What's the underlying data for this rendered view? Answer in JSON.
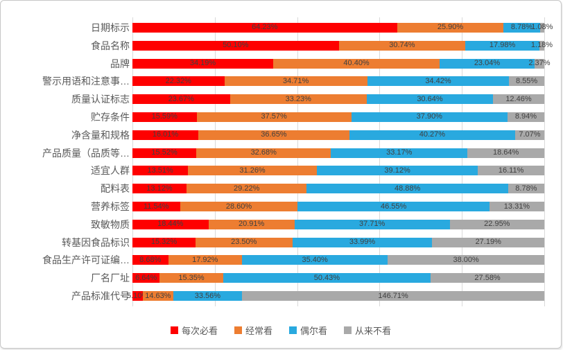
{
  "chart_data": {
    "type": "bar",
    "subtype": "horizontal-stacked-100",
    "title": "",
    "xlabel": "",
    "ylabel": "",
    "xlim": [
      0,
      100
    ],
    "grid": true,
    "gridline_positions_pct": [
      0,
      20,
      40,
      60,
      80,
      100
    ],
    "legend_position": "bottom",
    "categories": [
      "日期标示",
      "食品名称",
      "品牌",
      "警示用语和注意事…",
      "质量认证标志",
      "贮存条件",
      "净含量和规格",
      "产品质量（品质等…",
      "适宜人群",
      "配料表",
      "营养标签",
      "致敏物质",
      "转基因食品标识",
      "食品生产许可证编…",
      "厂名厂址",
      "产品标准代号"
    ],
    "series": [
      {
        "name": "每次必看",
        "color": "#fe0000",
        "values": [
          64.23,
          50.1,
          34.19,
          22.32,
          23.67,
          15.59,
          16.01,
          15.52,
          13.51,
          13.12,
          11.54,
          18.44,
          15.32,
          8.68,
          6.64,
          5.1
        ]
      },
      {
        "name": "经常看",
        "color": "#ed7d31",
        "values": [
          25.9,
          30.74,
          40.4,
          34.71,
          33.23,
          37.57,
          36.65,
          32.68,
          31.26,
          29.22,
          28.6,
          20.91,
          23.5,
          17.92,
          15.35,
          14.63
        ]
      },
      {
        "name": "偶尔看",
        "color": "#29a9df",
        "values": [
          8.78,
          17.98,
          23.04,
          34.42,
          30.64,
          37.9,
          40.27,
          33.17,
          39.12,
          48.88,
          46.55,
          37.71,
          33.99,
          35.4,
          50.43,
          33.56
        ]
      },
      {
        "name": "从来不看",
        "color": "#a9a9a9",
        "values": [
          1.08,
          1.18,
          2.37,
          8.55,
          12.46,
          8.94,
          7.07,
          18.64,
          16.11,
          8.78,
          13.31,
          22.95,
          27.19,
          38.0,
          27.58,
          146.71
        ]
      }
    ],
    "colors": {
      "data_label": "#404040",
      "category_label": "#595959",
      "gridline": "#d9d9d9",
      "frame_border": "#c6c6c6",
      "background": "#ffffff"
    },
    "value_label_format": "0.00%"
  }
}
